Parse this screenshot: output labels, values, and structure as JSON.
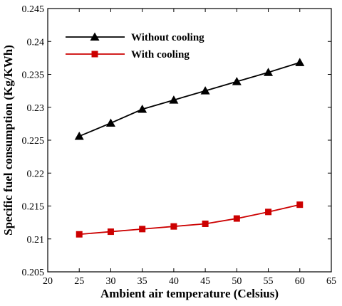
{
  "chart_data": {
    "type": "line",
    "title": "",
    "xlabel": "Ambient air temperature (Celsius)",
    "ylabel": "Specific fuel consumption (Kg/KWh)",
    "xlim": [
      20,
      65
    ],
    "ylim": [
      0.205,
      0.245
    ],
    "x_ticks": [
      20,
      25,
      30,
      35,
      40,
      45,
      50,
      55,
      60,
      65
    ],
    "y_ticks": [
      0.205,
      0.21,
      0.215,
      0.22,
      0.225,
      0.23,
      0.235,
      0.24,
      0.245
    ],
    "grid": false,
    "legend_position": "top-left",
    "x": [
      25,
      30,
      35,
      40,
      45,
      50,
      55,
      60
    ],
    "series": [
      {
        "name": "Without cooling",
        "values": [
          0.2256,
          0.2276,
          0.2297,
          0.2311,
          0.2325,
          0.2339,
          0.2353,
          0.2368
        ],
        "color": "#000000",
        "marker": "triangle"
      },
      {
        "name": "With cooling",
        "values": [
          0.2107,
          0.2111,
          0.2115,
          0.2119,
          0.2123,
          0.2131,
          0.2141,
          0.2152
        ],
        "color": "#cc0000",
        "marker": "square"
      }
    ]
  }
}
